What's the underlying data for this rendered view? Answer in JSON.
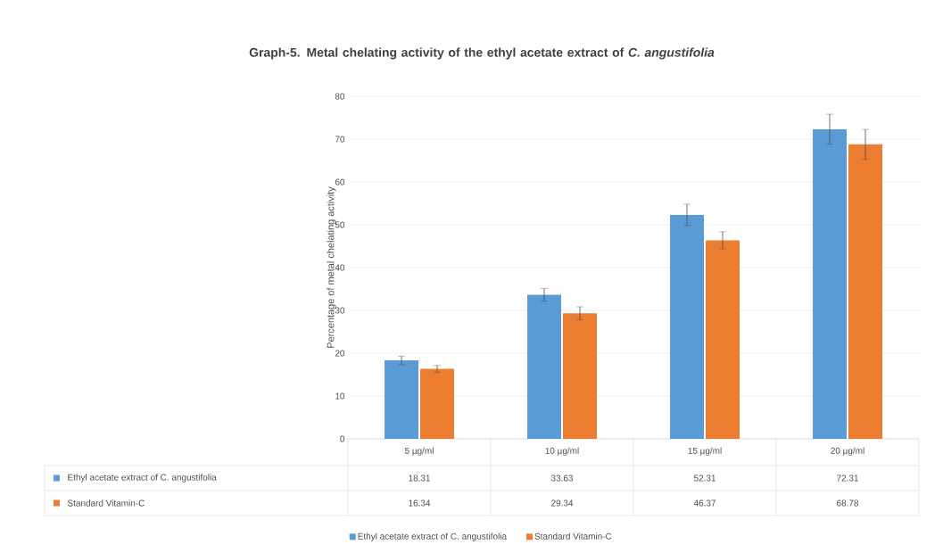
{
  "chart_data": {
    "type": "bar",
    "title": "Graph-5. Metal chelating activity of the ethyl acetate extract of *C. angustifolia*",
    "ylabel": "Percentage of metal chelating activity",
    "categories": [
      "5 µg/ml",
      "10 µg/ml",
      "15 µg/ml",
      "20 µg/ml"
    ],
    "series": [
      {
        "name": "Ethyl acetate extract of C. angustifolia",
        "color": "#5b9bd5",
        "values": [
          18.31,
          33.63,
          52.31,
          72.31
        ],
        "errors": [
          1,
          1.5,
          2.5,
          3.5
        ]
      },
      {
        "name": "Standard Vitamin-C",
        "color": "#ed7d31",
        "values": [
          16.34,
          29.34,
          46.37,
          68.78
        ],
        "errors": [
          0.8,
          1.5,
          2,
          3.5
        ]
      }
    ],
    "ylim": [
      0,
      80
    ],
    "yticks": [
      0,
      10,
      20,
      30,
      40,
      50,
      60,
      70,
      80
    ],
    "grid": "y",
    "legend": "bottom",
    "data_labels": true
  }
}
